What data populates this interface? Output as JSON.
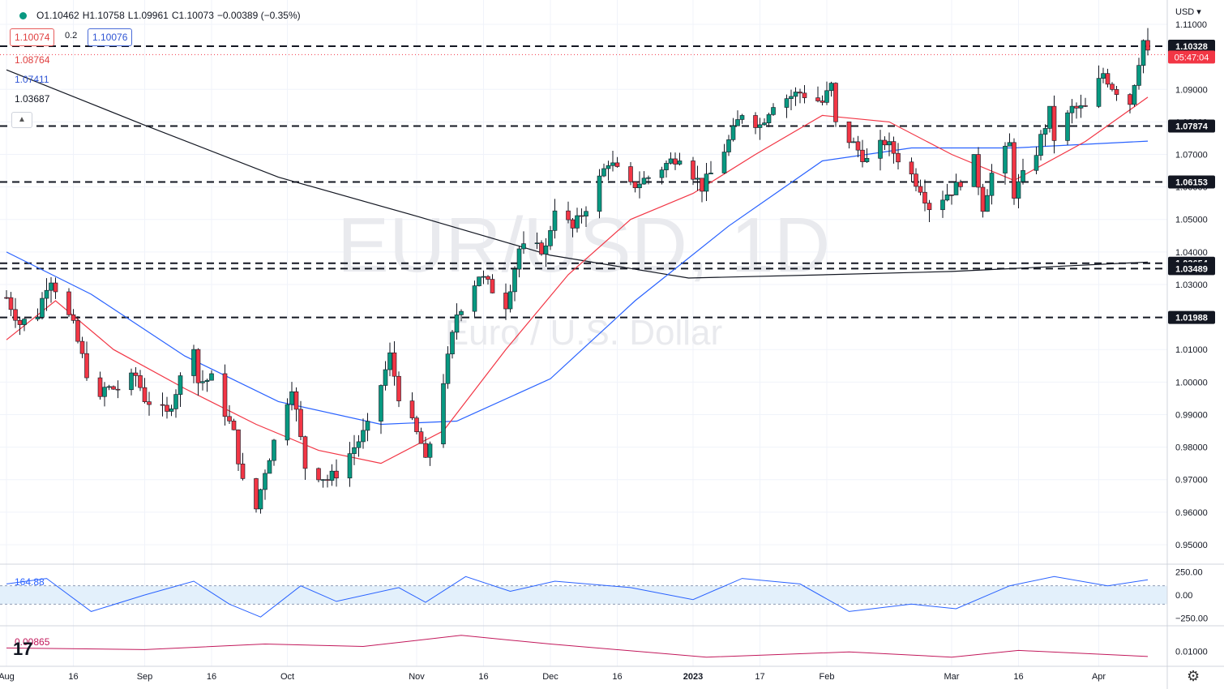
{
  "symbol": {
    "watermark_title": "EUR/USD, 1D",
    "watermark_subtitle": "Euro / U.S. Dollar"
  },
  "ohlc_bar": {
    "open": "O1.10462",
    "high": "H1.10758",
    "low": "L1.09961",
    "close": "C1.10073",
    "change": "−0.00389 (−0.35%)"
  },
  "bid_ask": {
    "bid": "1.10074",
    "spread": "0.2",
    "ask": "1.10076"
  },
  "ma_labels": {
    "ma20": "1.08764",
    "ma50": "1.07411",
    "ma200": "1.03687"
  },
  "axis": {
    "currency": "USD",
    "price_ticks": [
      "1.11000",
      "1.09000",
      "1.08000",
      "1.07000",
      "1.06000",
      "1.05000",
      "1.04000",
      "1.03000",
      "1.02000",
      "1.01000",
      "1.00000",
      "0.99000",
      "0.98000",
      "0.97000",
      "0.96000",
      "0.95000"
    ],
    "current_price": "1.10328",
    "countdown": "05:47:04",
    "cci_ticks": [
      "250.00",
      "0.00",
      "−250.00"
    ],
    "atr_ticks": [
      "0.01000"
    ],
    "date_labels": [
      "Aug",
      "16",
      "Sep",
      "16",
      "Oct",
      "Nov",
      "16",
      "Dec",
      "16",
      "2023",
      "17",
      "Feb",
      "Mar",
      "16",
      "Apr"
    ]
  },
  "indicators": {
    "cci_value": "164.88",
    "atr_value": "0.00865",
    "logo": "17"
  },
  "colors": {
    "up": "#089981",
    "down": "#f23645",
    "ma20": "#f23645",
    "ma50": "#2962ff",
    "ma200": "#131722",
    "cci": "#2962ff",
    "atr": "#c2185b",
    "cci_band": "#e3f0fb"
  },
  "chart_data": {
    "type": "candlestick",
    "title": "EUR/USD, 1D",
    "subtitle": "Euro / U.S. Dollar",
    "x_start": "2022-08-01",
    "x_end": "2023-04-14",
    "ylim": [
      0.945,
      1.112
    ],
    "horizontal_levels": [
      1.10328,
      1.07874,
      1.06153,
      1.03654,
      1.03489,
      1.01988
    ],
    "close_path": [
      [
        "2022-08-01",
        1.026
      ],
      [
        "2022-08-04",
        1.018
      ],
      [
        "2022-08-08",
        1.021
      ],
      [
        "2022-08-10",
        1.03
      ],
      [
        "2022-08-11",
        1.032
      ],
      [
        "2022-08-16",
        1.017
      ],
      [
        "2022-08-19",
        1.003
      ],
      [
        "2022-08-22",
        0.994
      ],
      [
        "2022-08-23",
        0.998
      ],
      [
        "2022-08-26",
        0.998
      ],
      [
        "2022-08-30",
        1.002
      ],
      [
        "2022-09-01",
        0.995
      ],
      [
        "2022-09-06",
        0.99
      ],
      [
        "2022-09-12",
        1.012
      ],
      [
        "2022-09-13",
        1.0
      ],
      [
        "2022-09-16",
        1.001
      ],
      [
        "2022-09-21",
        0.984
      ],
      [
        "2022-09-23",
        0.969
      ],
      [
        "2022-09-26",
        0.961
      ],
      [
        "2022-09-28",
        0.973
      ],
      [
        "2022-10-04",
        0.999
      ],
      [
        "2022-10-07",
        0.974
      ],
      [
        "2022-10-12",
        0.97
      ],
      [
        "2022-10-14",
        0.972
      ],
      [
        "2022-10-21",
        0.986
      ],
      [
        "2022-10-26",
        1.008
      ],
      [
        "2022-10-28",
        0.996
      ],
      [
        "2022-11-02",
        0.981
      ],
      [
        "2022-11-03",
        0.975
      ],
      [
        "2022-11-08",
        1.007
      ],
      [
        "2022-11-10",
        1.021
      ],
      [
        "2022-11-15",
        1.033
      ],
      [
        "2022-11-21",
        1.024
      ],
      [
        "2022-11-24",
        1.041
      ],
      [
        "2022-11-30",
        1.041
      ],
      [
        "2022-12-02",
        1.054
      ],
      [
        "2022-12-06",
        1.047
      ],
      [
        "2022-12-09",
        1.054
      ],
      [
        "2022-12-14",
        1.068
      ],
      [
        "2022-12-19",
        1.06
      ],
      [
        "2022-12-23",
        1.063
      ],
      [
        "2022-12-30",
        1.07
      ],
      [
        "2023-01-04",
        1.06
      ],
      [
        "2023-01-06",
        1.064
      ],
      [
        "2023-01-10",
        1.074
      ],
      [
        "2023-01-13",
        1.083
      ],
      [
        "2023-01-17",
        1.079
      ],
      [
        "2023-01-20",
        1.086
      ],
      [
        "2023-01-26",
        1.089
      ],
      [
        "2023-01-31",
        1.086
      ],
      [
        "2023-02-02",
        1.091
      ],
      [
        "2023-02-03",
        1.079
      ],
      [
        "2023-02-07",
        1.073
      ],
      [
        "2023-02-10",
        1.068
      ],
      [
        "2023-02-14",
        1.074
      ],
      [
        "2023-02-17",
        1.069
      ],
      [
        "2023-02-22",
        1.06
      ],
      [
        "2023-02-24",
        1.054
      ],
      [
        "2023-02-28",
        1.058
      ],
      [
        "2023-03-02",
        1.06
      ],
      [
        "2023-03-06",
        1.068
      ],
      [
        "2023-03-08",
        1.054
      ],
      [
        "2023-03-10",
        1.064
      ],
      [
        "2023-03-14",
        1.073
      ],
      [
        "2023-03-15",
        1.058
      ],
      [
        "2023-03-20",
        1.071
      ],
      [
        "2023-03-23",
        1.083
      ],
      [
        "2023-03-24",
        1.075
      ],
      [
        "2023-03-28",
        1.084
      ],
      [
        "2023-03-31",
        1.084
      ],
      [
        "2023-04-04",
        1.095
      ],
      [
        "2023-04-06",
        1.091
      ],
      [
        "2023-04-10",
        1.086
      ],
      [
        "2023-04-12",
        1.099
      ],
      [
        "2023-04-13",
        1.105
      ],
      [
        "2023-04-14",
        1.1007
      ]
    ],
    "ma20": [
      [
        "2022-08-01",
        1.013
      ],
      [
        "2022-08-12",
        1.025
      ],
      [
        "2022-08-25",
        1.01
      ],
      [
        "2022-09-10",
        0.998
      ],
      [
        "2022-09-26",
        0.987
      ],
      [
        "2022-10-10",
        0.979
      ],
      [
        "2022-10-24",
        0.975
      ],
      [
        "2022-11-07",
        0.985
      ],
      [
        "2022-11-21",
        1.01
      ],
      [
        "2022-12-05",
        1.033
      ],
      [
        "2022-12-19",
        1.05
      ],
      [
        "2023-01-02",
        1.058
      ],
      [
        "2023-01-16",
        1.07
      ],
      [
        "2023-01-31",
        1.082
      ],
      [
        "2023-02-15",
        1.08
      ],
      [
        "2023-03-01",
        1.07
      ],
      [
        "2023-03-15",
        1.062
      ],
      [
        "2023-03-31",
        1.074
      ],
      [
        "2023-04-14",
        1.0876
      ]
    ],
    "ma50": [
      [
        "2022-08-01",
        1.04
      ],
      [
        "2022-08-20",
        1.027
      ],
      [
        "2022-09-10",
        1.008
      ],
      [
        "2022-10-01",
        0.994
      ],
      [
        "2022-10-24",
        0.987
      ],
      [
        "2022-11-10",
        0.988
      ],
      [
        "2022-12-01",
        1.001
      ],
      [
        "2022-12-20",
        1.025
      ],
      [
        "2023-01-10",
        1.048
      ],
      [
        "2023-01-31",
        1.068
      ],
      [
        "2023-02-20",
        1.072
      ],
      [
        "2023-03-15",
        1.072
      ],
      [
        "2023-04-14",
        1.0741
      ]
    ],
    "ma200": [
      [
        "2022-08-01",
        1.096
      ],
      [
        "2022-09-01",
        1.079
      ],
      [
        "2022-10-01",
        1.063
      ],
      [
        "2022-11-01",
        1.051
      ],
      [
        "2022-12-01",
        1.039
      ],
      [
        "2023-01-01",
        1.032
      ],
      [
        "2023-02-01",
        1.033
      ],
      [
        "2023-03-01",
        1.034
      ],
      [
        "2023-04-14",
        1.0369
      ]
    ],
    "cci": [
      [
        "2022-08-01",
        120
      ],
      [
        "2022-08-10",
        180
      ],
      [
        "2022-08-20",
        -180
      ],
      [
        "2022-09-01",
        0
      ],
      [
        "2022-09-12",
        150
      ],
      [
        "2022-09-20",
        -100
      ],
      [
        "2022-09-27",
        -240
      ],
      [
        "2022-10-06",
        100
      ],
      [
        "2022-10-14",
        -70
      ],
      [
        "2022-10-28",
        80
      ],
      [
        "2022-11-03",
        -80
      ],
      [
        "2022-11-12",
        200
      ],
      [
        "2022-11-22",
        40
      ],
      [
        "2022-12-02",
        150
      ],
      [
        "2022-12-19",
        80
      ],
      [
        "2023-01-02",
        -50
      ],
      [
        "2023-01-13",
        180
      ],
      [
        "2023-01-26",
        120
      ],
      [
        "2023-02-06",
        -180
      ],
      [
        "2023-02-20",
        -100
      ],
      [
        "2023-03-02",
        -150
      ],
      [
        "2023-03-14",
        100
      ],
      [
        "2023-03-24",
        200
      ],
      [
        "2023-04-05",
        100
      ],
      [
        "2023-04-14",
        164.88
      ]
    ],
    "atr": [
      [
        "2022-08-01",
        0.0108
      ],
      [
        "2022-09-01",
        0.0104
      ],
      [
        "2022-09-28",
        0.0118
      ],
      [
        "2022-10-20",
        0.0112
      ],
      [
        "2022-11-11",
        0.014
      ],
      [
        "2022-12-01",
        0.0118
      ],
      [
        "2023-01-05",
        0.0085
      ],
      [
        "2023-02-06",
        0.0098
      ],
      [
        "2023-03-01",
        0.0085
      ],
      [
        "2023-03-16",
        0.0102
      ],
      [
        "2023-04-14",
        0.00865
      ]
    ]
  }
}
